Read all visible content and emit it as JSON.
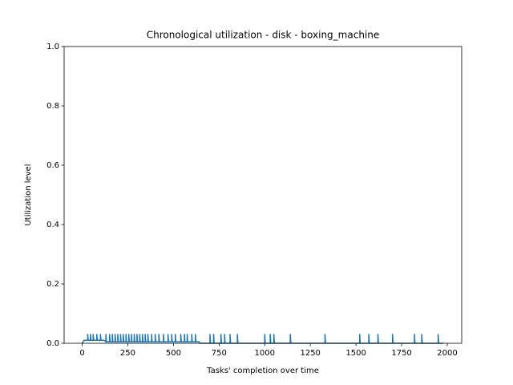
{
  "chart_data": {
    "type": "line",
    "title": "Chronological utilization - disk - boxing_machine",
    "x_label": "Tasks' completion over time",
    "y_label": "Utilization level",
    "xlim": [
      -99,
      2079
    ],
    "ylim": [
      0,
      1
    ],
    "xticks": [
      0,
      250,
      500,
      750,
      1000,
      1250,
      1500,
      1750,
      2000
    ],
    "yticks": [
      {
        "value": 0,
        "label": "0.0"
      },
      {
        "value": 0.2,
        "label": "0.2"
      },
      {
        "value": 0.4,
        "label": "0.4"
      },
      {
        "value": 0.6,
        "label": "0.6"
      },
      {
        "value": 0.8,
        "label": "0.8"
      },
      {
        "value": 1,
        "label": "1.0"
      }
    ],
    "x": [
      0,
      10,
      30,
      30,
      33,
      45,
      45,
      48,
      60,
      60,
      63,
      80,
      80,
      83,
      100,
      100,
      103,
      120,
      130,
      130,
      133,
      150,
      150,
      153,
      165,
      165,
      168,
      180,
      180,
      183,
      195,
      195,
      198,
      210,
      210,
      213,
      225,
      225,
      228,
      240,
      240,
      243,
      255,
      255,
      258,
      270,
      270,
      273,
      285,
      285,
      288,
      300,
      300,
      303,
      315,
      315,
      318,
      330,
      330,
      333,
      345,
      345,
      348,
      360,
      360,
      363,
      380,
      380,
      383,
      400,
      400,
      403,
      420,
      420,
      423,
      445,
      445,
      448,
      470,
      470,
      473,
      490,
      490,
      493,
      510,
      510,
      513,
      540,
      540,
      543,
      560,
      560,
      563,
      575,
      575,
      578,
      600,
      600,
      603,
      620,
      620,
      623,
      640,
      645,
      700,
      700,
      703,
      720,
      720,
      723,
      760,
      760,
      763,
      780,
      780,
      783,
      810,
      810,
      813,
      850,
      850,
      853,
      1000,
      1000,
      1003,
      1030,
      1030,
      1033,
      1050,
      1050,
      1053,
      1140,
      1140,
      1143,
      1330,
      1330,
      1333,
      1520,
      1520,
      1523,
      1570,
      1570,
      1573,
      1620,
      1620,
      1623,
      1700,
      1700,
      1703,
      1820,
      1820,
      1823,
      1860,
      1860,
      1863,
      1950,
      1950,
      1953,
      1980
    ],
    "series": [
      {
        "color": "#1f77b4",
        "values": [
          0,
          0.01,
          0.01,
          0.03,
          0.01,
          0.01,
          0.03,
          0.01,
          0.01,
          0.03,
          0.01,
          0.01,
          0.03,
          0.01,
          0.01,
          0.03,
          0.01,
          0.01,
          0.005,
          0.03,
          0.005,
          0.005,
          0.03,
          0.005,
          0.005,
          0.03,
          0.005,
          0.005,
          0.03,
          0.005,
          0.005,
          0.03,
          0.005,
          0.005,
          0.03,
          0.005,
          0.005,
          0.03,
          0.005,
          0.005,
          0.03,
          0.005,
          0.005,
          0.03,
          0.005,
          0.005,
          0.03,
          0.005,
          0.005,
          0.03,
          0.005,
          0.005,
          0.03,
          0.005,
          0.005,
          0.03,
          0.005,
          0.005,
          0.03,
          0.005,
          0.005,
          0.03,
          0.005,
          0.005,
          0.03,
          0.005,
          0.005,
          0.03,
          0.005,
          0.005,
          0.03,
          0.005,
          0.005,
          0.03,
          0.005,
          0.005,
          0.03,
          0.005,
          0.005,
          0.03,
          0.005,
          0.005,
          0.03,
          0.005,
          0.005,
          0.03,
          0.005,
          0.005,
          0.03,
          0.005,
          0.005,
          0.03,
          0.005,
          0.005,
          0.03,
          0.005,
          0.005,
          0.03,
          0.005,
          0.005,
          0.03,
          0.005,
          0.005,
          0,
          0,
          0.03,
          0,
          0,
          0.03,
          0,
          0,
          0.03,
          0,
          0,
          0.03,
          0,
          0,
          0.03,
          0,
          0,
          0.03,
          0,
          0,
          0.03,
          0,
          0,
          0.03,
          0,
          0,
          0.03,
          0,
          0,
          0.03,
          0,
          0,
          0.03,
          0,
          0,
          0.03,
          0,
          0,
          0.03,
          0,
          0,
          0.03,
          0,
          0,
          0.03,
          0,
          0,
          0.03,
          0,
          0,
          0.03,
          0,
          0,
          0.03,
          0,
          0
        ]
      }
    ]
  }
}
